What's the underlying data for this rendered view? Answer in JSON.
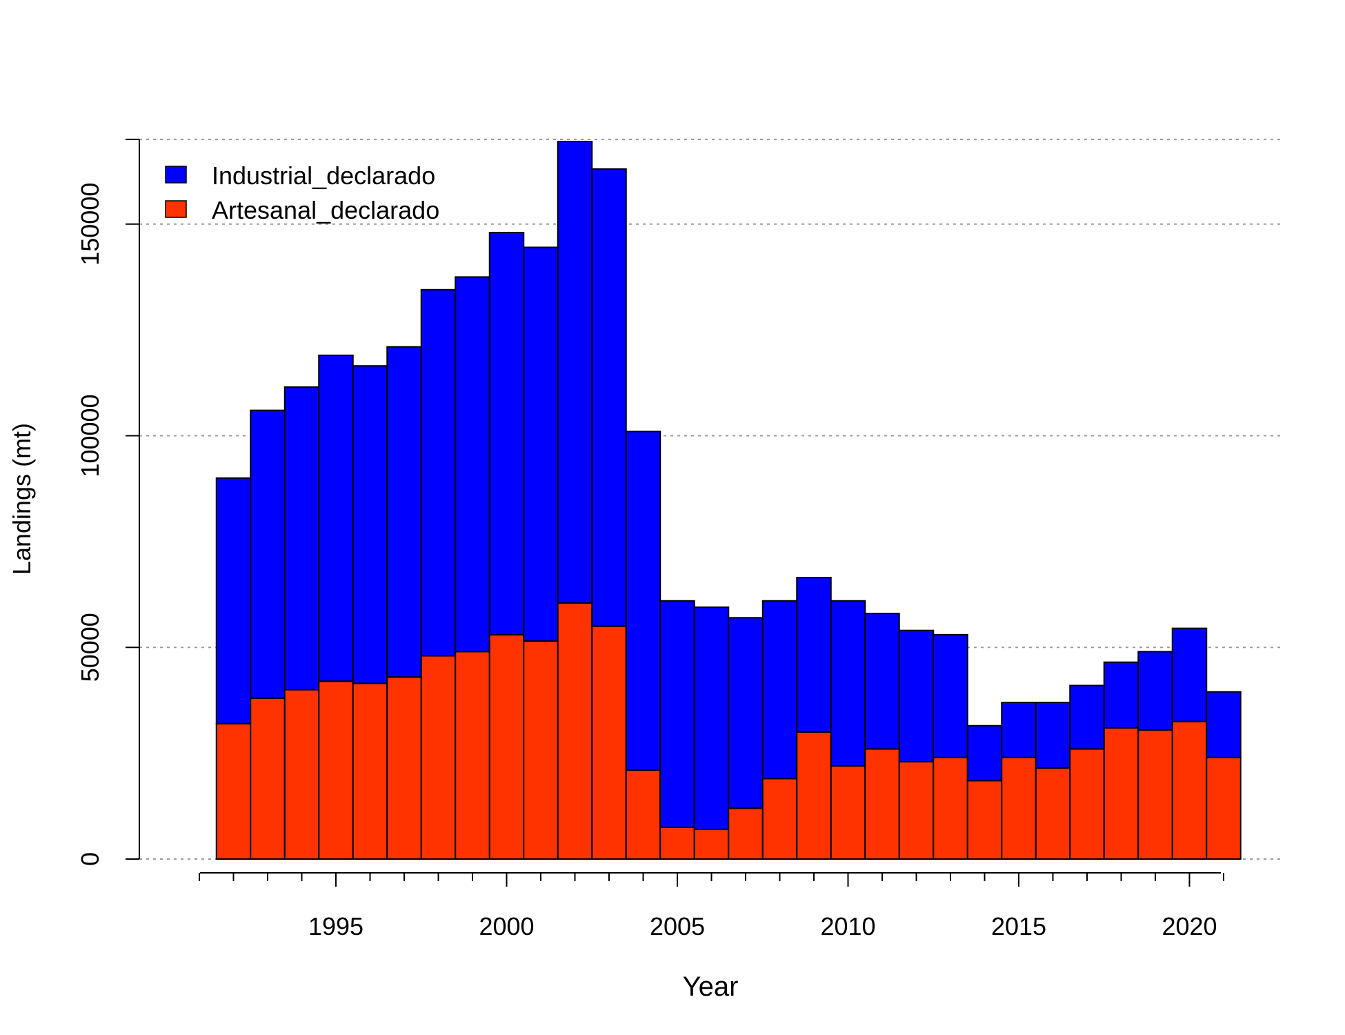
{
  "chart_data": {
    "type": "bar",
    "stacked": true,
    "title": "",
    "xlabel": "Year",
    "ylabel": "Landings (mt)",
    "x": [
      1992,
      1993,
      1994,
      1995,
      1996,
      1997,
      1998,
      1999,
      2000,
      2001,
      2002,
      2003,
      2004,
      2005,
      2006,
      2007,
      2008,
      2009,
      2010,
      2011,
      2012,
      2013,
      2014,
      2015,
      2016,
      2017,
      2018,
      2019,
      2020,
      2021
    ],
    "series": [
      {
        "name": "Artesanal_declarado",
        "color": "#FF3300",
        "values": [
          32000,
          38000,
          40000,
          42000,
          41500,
          43000,
          48000,
          49000,
          53000,
          51500,
          60500,
          55000,
          21000,
          7500,
          7000,
          12000,
          19000,
          30000,
          22000,
          26000,
          23000,
          24000,
          18500,
          24000,
          21500,
          26000,
          31000,
          30500,
          32500,
          24000
        ]
      },
      {
        "name": "Industrial_declarado",
        "color": "#0000FF",
        "values": [
          58000,
          68000,
          71500,
          77000,
          75000,
          78000,
          86500,
          88500,
          95000,
          93000,
          109000,
          108000,
          80000,
          53500,
          52500,
          45000,
          42000,
          36500,
          39000,
          32000,
          31000,
          29000,
          13000,
          13000,
          15500,
          15000,
          15500,
          18500,
          22000,
          15500
        ]
      }
    ],
    "ylim": [
      0,
      170000
    ],
    "yticks": [
      "0",
      "50000",
      "100000",
      "150000"
    ],
    "ytick_values": [
      0,
      50000,
      100000,
      150000
    ],
    "xtick_labels": [
      "1995",
      "2000",
      "2005",
      "2010",
      "2015",
      "2020"
    ],
    "xtick_values": [
      1995,
      2000,
      2005,
      2010,
      2015,
      2020
    ],
    "grid": "horizontal dotted",
    "legend_position": "top-left",
    "legend": [
      "Industrial_declarado",
      "Artesanal_declarado"
    ]
  }
}
